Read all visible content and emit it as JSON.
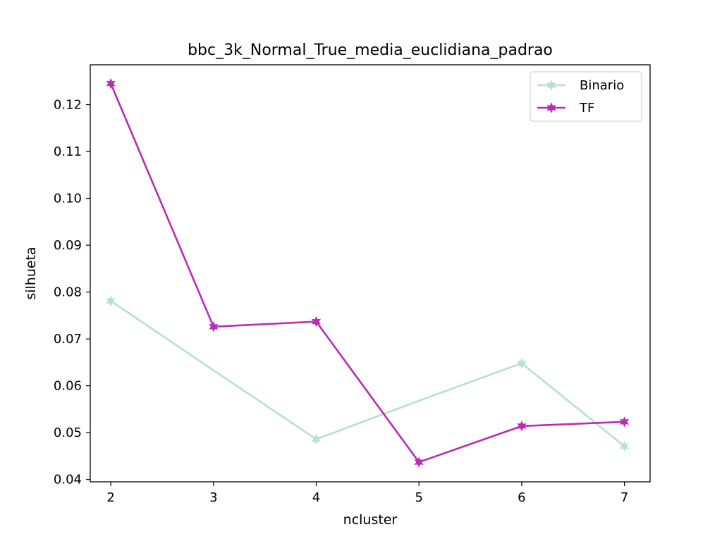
{
  "chart_data": {
    "type": "line",
    "title": "bbc_3k_Normal_True_media_euclidiana_padrao",
    "xlabel": "ncluster",
    "ylabel": "silhueta",
    "x": [
      2,
      3,
      4,
      5,
      6,
      7
    ],
    "xlim": [
      1.8,
      7.25
    ],
    "ylim": [
      0.0395,
      0.1285
    ],
    "xticks": [
      "2",
      "3",
      "4",
      "5",
      "6",
      "7"
    ],
    "yticks": [
      "0.04",
      "0.05",
      "0.06",
      "0.07",
      "0.08",
      "0.09",
      "0.10",
      "0.11",
      "0.12"
    ],
    "grid": false,
    "legend_position": "top-right",
    "series": [
      {
        "name": "Binario",
        "color": "#b5e2cd",
        "marker": "star",
        "values": [
          0.0781,
          0.0633,
          0.0486,
          0.0568,
          0.0648,
          0.0471
        ]
      },
      {
        "name": "TF",
        "color": "#bb2bb5",
        "marker": "star",
        "values": [
          0.1245,
          0.0726,
          0.0737,
          0.0437,
          0.0514,
          0.0523
        ]
      }
    ],
    "marker_mask": [
      [
        true,
        false,
        true,
        false,
        true,
        true
      ],
      [
        true,
        true,
        true,
        true,
        true,
        true
      ]
    ]
  }
}
